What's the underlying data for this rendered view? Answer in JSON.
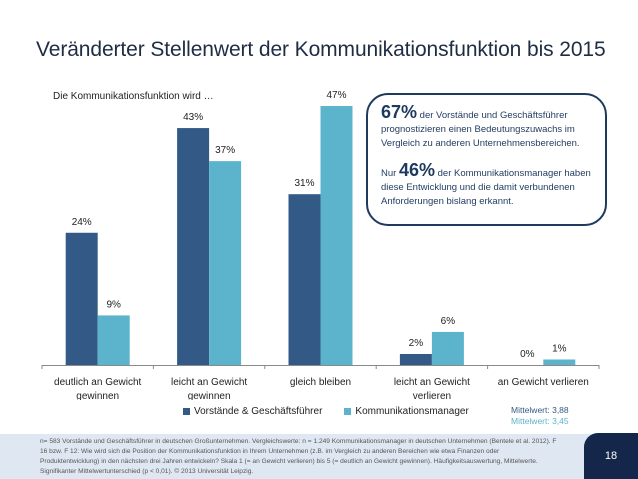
{
  "title": "Veränderter Stellenwert der Kommunikationsfunktion bis 2015",
  "chart_data": {
    "type": "bar",
    "subtitle": "Die Kommunikationsfunktion wird …",
    "categories": [
      [
        "deutlich an Gewicht",
        "gewinnen"
      ],
      [
        "leicht an Gewicht",
        "gewinnen"
      ],
      [
        "gleich bleiben"
      ],
      [
        "leicht an Gewicht",
        "verlieren"
      ],
      [
        "an Gewicht verlieren"
      ]
    ],
    "series": [
      {
        "name": "Vorstände & Geschäftsführer",
        "color": "#335a87",
        "values": [
          24,
          43,
          31,
          2,
          0
        ]
      },
      {
        "name": "Kommunikationsmanager",
        "color": "#5cb4cc",
        "values": [
          9,
          37,
          47,
          6,
          1
        ]
      }
    ],
    "unit": "%",
    "ylim": [
      0,
      50
    ],
    "grid": false,
    "legend": "bottom"
  },
  "callout": {
    "line1_big": "67%",
    "line1_rest": " der Vorstände und Geschäftsführer",
    "line1_more": "prognostizieren einen Bedeutungszuwachs im Vergleich zu anderen Unternehmensbereichen.",
    "line2_pre": "Nur ",
    "line2_big": "46%",
    "line2_rest": " der Kommunikationsmanager haben diese Entwicklung und die damit verbundenen Anforderungen bislang erkannt."
  },
  "means": {
    "vorstaende": "Mittelwert: 3,88",
    "manager": "Mittelwert: 3,45",
    "vorstaende_color": "#335a87",
    "manager_color": "#5cb4cc"
  },
  "footnote": "n= 583 Vorstände und Geschäftsführer in deutschen Großunternehmen. Vergleichswerte: n = 1.249 Kommunikationsmanager in deutschen Unternehmen (Bentele et al. 2012). F 16 bzw. F 12: Wie wird sich die Position der Kommunikationsfunktion in Ihrem Unternehmen (z.B. im Vergleich zu anderen Bereichen wie etwa Finanzen oder Produktentwicklung) in den nächsten drei Jahren entwickeln? Skala 1 (= an Gewicht verlieren) bis 5 (= deutlich an Gewicht gewinnen). Häufigkeitsauswertung, Mittelwerte. Signifikanter Mittelwertunterschied (p < 0,01). © 2013 Universität Leipzig.",
  "page_number": "18"
}
